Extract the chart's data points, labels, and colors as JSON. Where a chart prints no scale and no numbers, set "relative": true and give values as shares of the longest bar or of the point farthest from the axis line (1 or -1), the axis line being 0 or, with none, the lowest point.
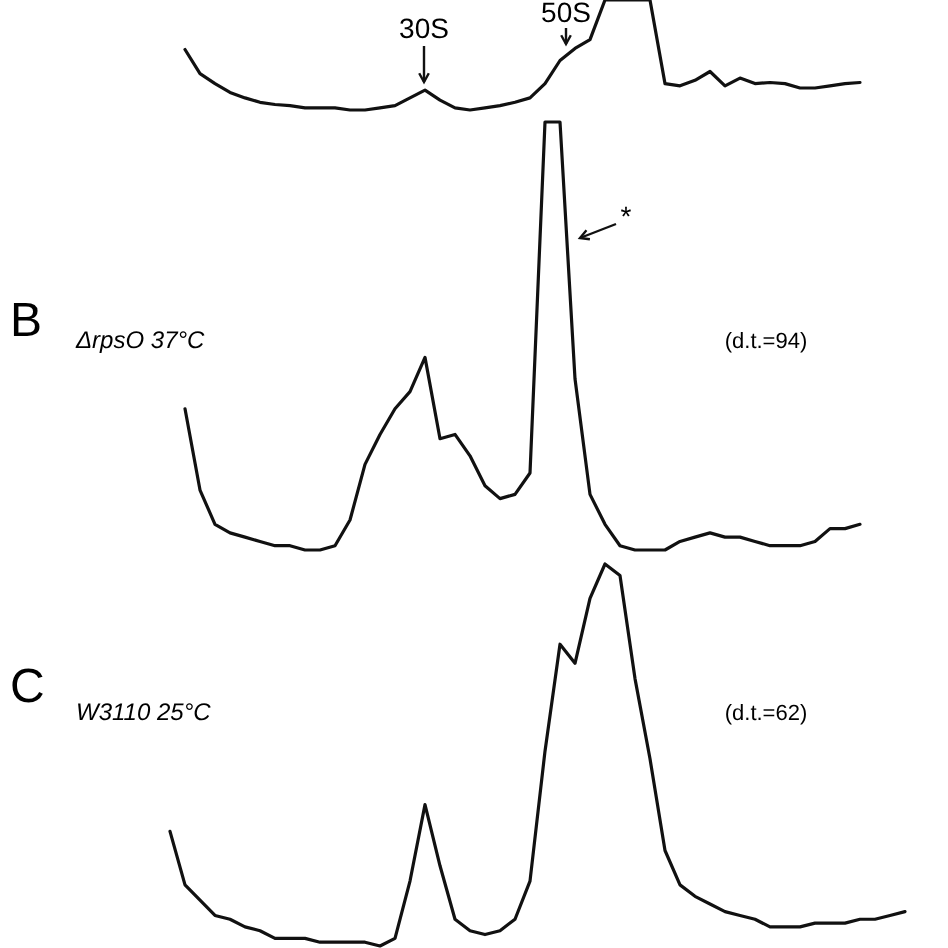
{
  "chart_data": [
    {
      "type": "line",
      "relative": true,
      "categories": [
        null,
        null,
        null,
        null,
        null,
        null,
        null,
        null,
        null,
        null,
        null,
        null,
        null,
        null,
        null,
        null,
        null,
        null,
        null,
        null,
        null,
        null,
        null,
        null,
        null,
        null,
        null,
        null,
        null,
        null,
        null,
        null,
        null,
        null,
        null,
        null,
        null,
        null,
        null,
        null,
        null,
        null,
        null,
        null,
        null,
        null,
        null,
        null,
        null,
        null,
        null
      ],
      "annotations": [
        "30S",
        "50S"
      ],
      "series": [
        {
          "color": "#111111",
          "values": [
            null,
            0.55,
            0.33,
            0.24,
            0.16,
            0.11,
            0.07,
            0.05,
            0.04,
            0.02,
            0.02,
            0.02,
            0,
            0,
            0.02,
            0.04,
            0.11,
            0.18,
            0.09,
            0.02,
            0,
            0.02,
            0.04,
            0.07,
            0.11,
            0.24,
            0.45,
            0.56,
            0.64,
            1,
            1,
            1,
            1,
            0.24,
            0.22,
            0.27,
            0.35,
            0.22,
            0.29,
            0.24,
            0.25,
            0.24,
            0.2,
            0.2,
            0.22,
            0.24,
            0.25,
            null,
            null,
            null,
            null
          ]
        }
      ]
    },
    {
      "type": "line",
      "relative": true,
      "title": "B",
      "subtitle": "ΔrpsO 37°C",
      "categories": [
        null,
        null,
        null,
        null,
        null,
        null,
        null,
        null,
        null,
        null,
        null,
        null,
        null,
        null,
        null,
        null,
        null,
        null,
        null,
        null,
        null,
        null,
        null,
        null,
        null,
        null,
        null,
        null,
        null,
        null,
        null,
        null,
        null,
        null,
        null,
        null,
        null,
        null,
        null,
        null,
        null,
        null,
        null,
        null,
        null,
        null,
        null,
        null,
        null,
        null,
        null
      ],
      "annotations": [
        "(d.t.=94)",
        "*"
      ],
      "series": [
        {
          "color": "#111111",
          "values": [
            null,
            0.33,
            0.14,
            0.06,
            0.04,
            0.03,
            0.02,
            0.01,
            0.01,
            0,
            0,
            0.01,
            0.07,
            0.2,
            0.27,
            0.33,
            0.37,
            0.45,
            0.26,
            0.27,
            0.22,
            0.15,
            0.12,
            0.13,
            0.18,
            1,
            1,
            0.4,
            0.13,
            0.06,
            0.01,
            0,
            0,
            0,
            0.02,
            0.03,
            0.04,
            0.03,
            0.03,
            0.02,
            0.01,
            0.01,
            0.01,
            0.02,
            0.05,
            0.05,
            0.06,
            null,
            null,
            null,
            null
          ]
        }
      ]
    },
    {
      "type": "line",
      "relative": true,
      "title": "C",
      "subtitle": "W3110 25°C",
      "categories": [
        null,
        null,
        null,
        null,
        null,
        null,
        null,
        null,
        null,
        null,
        null,
        null,
        null,
        null,
        null,
        null,
        null,
        null,
        null,
        null,
        null,
        null,
        null,
        null,
        null,
        null,
        null,
        null,
        null,
        null,
        null,
        null,
        null,
        null,
        null,
        null,
        null,
        null,
        null,
        null,
        null,
        null,
        null,
        null,
        null,
        null,
        null,
        null,
        null,
        null,
        null
      ],
      "annotations": [
        "(d.t.=62)"
      ],
      "series": [
        {
          "color": "#111111",
          "values": [
            0.3,
            0.16,
            0.12,
            0.08,
            0.07,
            0.05,
            0.04,
            0.02,
            0.02,
            0.02,
            0.01,
            0.01,
            0.01,
            0.01,
            0,
            0.02,
            0.17,
            0.37,
            0.21,
            0.07,
            0.04,
            0.03,
            0.04,
            0.07,
            0.17,
            0.51,
            0.79,
            0.74,
            0.91,
            1,
            0.97,
            0.7,
            0.49,
            0.25,
            0.16,
            0.13,
            0.11,
            0.09,
            0.08,
            0.07,
            0.05,
            0.05,
            0.05,
            0.06,
            0.06,
            0.06,
            0.07,
            0.07,
            0.08,
            0.09,
            null
          ]
        }
      ]
    }
  ]
}
